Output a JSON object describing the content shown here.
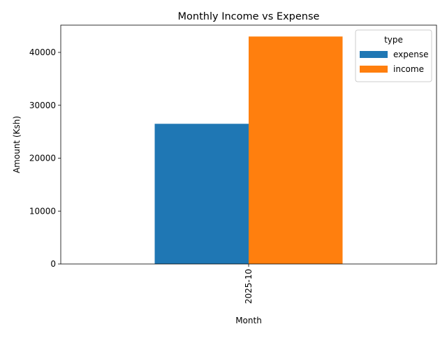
{
  "chart_data": {
    "type": "bar",
    "title": "Monthly Income vs Expense",
    "xlabel": "Month",
    "ylabel": "Amount (Ksh)",
    "categories": [
      "2025-10"
    ],
    "series": [
      {
        "name": "expense",
        "values": [
          26500
        ],
        "color": "#1f77b4"
      },
      {
        "name": "income",
        "values": [
          43000
        ],
        "color": "#ff7f0e"
      }
    ],
    "yticks": [
      0,
      10000,
      20000,
      30000,
      40000
    ],
    "ylim": [
      0,
      45150
    ],
    "legend": {
      "title": "type",
      "position": "top-right"
    },
    "grid": false
  }
}
